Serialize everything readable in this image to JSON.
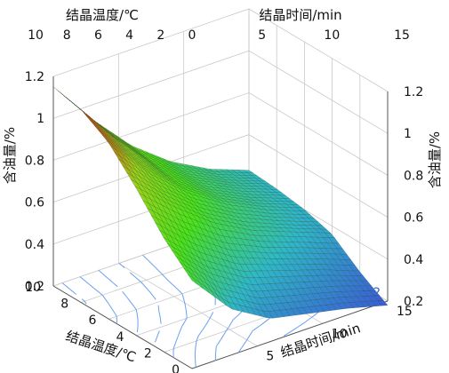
{
  "chart_data": {
    "type": "surface3d",
    "title": "",
    "axes": {
      "temperature": {
        "label": "结晶温度/℃",
        "range": [
          0,
          10
        ],
        "ticks": [
          0,
          2,
          4,
          6,
          8,
          10
        ]
      },
      "time": {
        "label": "结晶时间/min",
        "range": [
          0,
          15
        ],
        "ticks": [
          0,
          5,
          10,
          15
        ]
      },
      "oil": {
        "label": "含油量/%",
        "range": [
          0.2,
          1.2
        ],
        "ticks": [
          "0.2",
          "0.4",
          "0.6",
          "0.8",
          "1",
          "1.2"
        ]
      }
    },
    "surface": {
      "temperature": [
        0,
        2,
        4,
        6,
        8,
        10
      ],
      "time": [
        0,
        3,
        6,
        9,
        12,
        15
      ],
      "oil_content": [
        [
          0.62,
          0.42,
          0.31,
          0.27,
          0.23,
          0.18
        ],
        [
          0.74,
          0.57,
          0.45,
          0.39,
          0.33,
          0.26
        ],
        [
          0.9,
          0.74,
          0.6,
          0.5,
          0.43,
          0.36
        ],
        [
          1.04,
          0.84,
          0.68,
          0.56,
          0.47,
          0.4
        ],
        [
          1.12,
          0.9,
          0.71,
          0.58,
          0.49,
          0.42
        ],
        [
          1.15,
          0.93,
          0.74,
          0.6,
          0.5,
          0.43
        ]
      ]
    },
    "contour_labels": [
      "0.4",
      "0.2"
    ],
    "colormap": [
      "#3a5bd6",
      "#2fb8c9",
      "#49e31b",
      "#9bd11a",
      "#d81d12"
    ],
    "grid": true
  }
}
